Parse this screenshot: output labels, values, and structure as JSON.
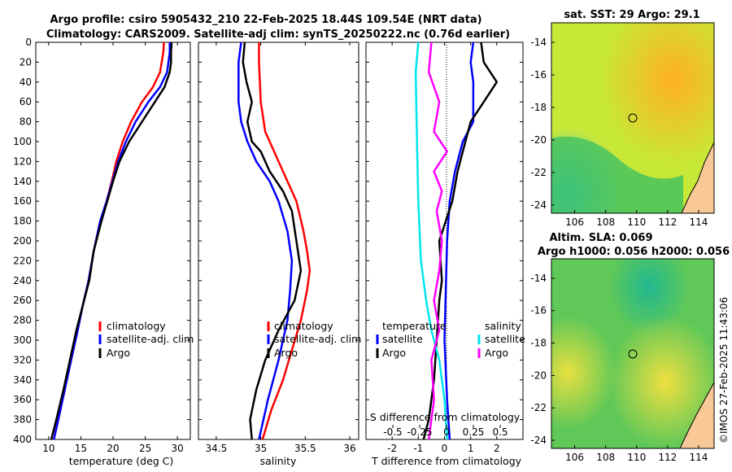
{
  "header": {
    "title_line1": "Argo profile: csiro 5905432_210 22-Feb-2025 18.44S 109.54E (NRT data)",
    "title_line2": "Climatology: CARS2009. Satellite-adj clim: synTS_20250222.nc (0.76d earlier)"
  },
  "colors": {
    "climatology": "#ff0000",
    "satellite": "#0000ff",
    "argo": "#000000",
    "t_diff": "#ff00ff",
    "s_diff": "#00e5ee"
  },
  "chart_data": [
    {
      "type": "line",
      "id": "temperature",
      "xlabel": "temperature (deg C)",
      "ylabel": "",
      "xlim": [
        8,
        32
      ],
      "ylim": [
        400,
        0
      ],
      "xticks": [
        10,
        15,
        20,
        25,
        30
      ],
      "yticks": [
        0,
        20,
        40,
        60,
        80,
        100,
        120,
        140,
        160,
        180,
        200,
        220,
        240,
        260,
        280,
        300,
        320,
        340,
        360,
        380,
        400
      ],
      "legend": [
        "climatology",
        "satellite-adj. clim",
        "Argo"
      ],
      "series": [
        {
          "name": "climatology",
          "color": "#ff0000",
          "points": [
            [
              27.9,
              0
            ],
            [
              27.8,
              10
            ],
            [
              27.3,
              30
            ],
            [
              26.2,
              45
            ],
            [
              24.5,
              60
            ],
            [
              22.8,
              80
            ],
            [
              21.5,
              100
            ],
            [
              20.5,
              120
            ],
            [
              19.8,
              140
            ],
            [
              19.0,
              160
            ],
            [
              18.0,
              180
            ],
            [
              17.0,
              210
            ],
            [
              16.2,
              240
            ],
            [
              15.3,
              265
            ],
            [
              14.5,
              290
            ],
            [
              13.5,
              320
            ],
            [
              12.5,
              350
            ],
            [
              11.5,
              380
            ],
            [
              10.8,
              400
            ]
          ]
        },
        {
          "name": "satellite-adj. clim",
          "color": "#0000ff",
          "points": [
            [
              28.8,
              0
            ],
            [
              28.8,
              10
            ],
            [
              28.4,
              30
            ],
            [
              27.3,
              45
            ],
            [
              25.5,
              60
            ],
            [
              23.5,
              80
            ],
            [
              22.0,
              100
            ],
            [
              20.8,
              120
            ],
            [
              19.9,
              140
            ],
            [
              19.0,
              160
            ],
            [
              18.0,
              180
            ],
            [
              17.0,
              210
            ],
            [
              16.2,
              240
            ],
            [
              15.3,
              265
            ],
            [
              14.5,
              290
            ],
            [
              13.5,
              320
            ],
            [
              12.5,
              350
            ],
            [
              11.5,
              380
            ],
            [
              10.8,
              400
            ]
          ]
        },
        {
          "name": "Argo",
          "color": "#000000",
          "points": [
            [
              29.1,
              0
            ],
            [
              29.0,
              10
            ],
            [
              29.0,
              20
            ],
            [
              28.8,
              30
            ],
            [
              28.0,
              45
            ],
            [
              26.5,
              60
            ],
            [
              24.5,
              80
            ],
            [
              22.5,
              100
            ],
            [
              21.0,
              120
            ],
            [
              20.0,
              140
            ],
            [
              19.1,
              160
            ],
            [
              18.2,
              180
            ],
            [
              17.0,
              210
            ],
            [
              16.3,
              240
            ],
            [
              15.3,
              265
            ],
            [
              14.3,
              290
            ],
            [
              13.3,
              320
            ],
            [
              12.3,
              350
            ],
            [
              11.2,
              380
            ],
            [
              10.4,
              400
            ]
          ]
        }
      ]
    },
    {
      "type": "line",
      "id": "salinity",
      "xlabel": "salinity",
      "ylabel": "",
      "xlim": [
        34.3,
        36.1
      ],
      "ylim": [
        400,
        0
      ],
      "xticks": [
        34.5,
        35,
        35.5,
        36
      ],
      "legend": [
        "climatology",
        "satellite-adj. clim",
        "Argo"
      ],
      "series": [
        {
          "name": "climatology",
          "color": "#ff0000",
          "points": [
            [
              34.98,
              0
            ],
            [
              34.98,
              20
            ],
            [
              35.0,
              60
            ],
            [
              35.05,
              90
            ],
            [
              35.1,
              100
            ],
            [
              35.2,
              120
            ],
            [
              35.3,
              140
            ],
            [
              35.4,
              160
            ],
            [
              35.48,
              190
            ],
            [
              35.52,
              210
            ],
            [
              35.55,
              230
            ],
            [
              35.52,
              250
            ],
            [
              35.45,
              280
            ],
            [
              35.35,
              310
            ],
            [
              35.25,
              340
            ],
            [
              35.12,
              370
            ],
            [
              35.02,
              400
            ]
          ]
        },
        {
          "name": "satellite-adj. clim",
          "color": "#0000ff",
          "points": [
            [
              34.78,
              0
            ],
            [
              34.75,
              20
            ],
            [
              34.75,
              60
            ],
            [
              34.78,
              80
            ],
            [
              34.85,
              100
            ],
            [
              34.95,
              120
            ],
            [
              35.1,
              140
            ],
            [
              35.2,
              160
            ],
            [
              35.3,
              190
            ],
            [
              35.35,
              220
            ],
            [
              35.33,
              250
            ],
            [
              35.3,
              280
            ],
            [
              35.2,
              320
            ],
            [
              35.08,
              360
            ],
            [
              34.98,
              400
            ]
          ]
        },
        {
          "name": "Argo",
          "color": "#000000",
          "points": [
            [
              34.82,
              0
            ],
            [
              34.8,
              20
            ],
            [
              34.84,
              40
            ],
            [
              34.9,
              60
            ],
            [
              34.85,
              80
            ],
            [
              34.9,
              100
            ],
            [
              35.0,
              110
            ],
            [
              35.1,
              130
            ],
            [
              35.25,
              150
            ],
            [
              35.35,
              170
            ],
            [
              35.4,
              200
            ],
            [
              35.45,
              230
            ],
            [
              35.38,
              260
            ],
            [
              35.2,
              290
            ],
            [
              35.05,
              320
            ],
            [
              34.95,
              350
            ],
            [
              34.88,
              380
            ],
            [
              34.9,
              400
            ]
          ]
        }
      ]
    },
    {
      "type": "line",
      "id": "difference",
      "xlabel": "T difference from climatology",
      "top_axis_label": "S difference from climatology",
      "xlim": [
        -3,
        3
      ],
      "ylim": [
        400,
        0
      ],
      "xticks": [
        -2,
        -1,
        0,
        1,
        2
      ],
      "s_tick_labels": [
        "-0.5",
        "-0.25",
        "0",
        "0.25",
        "0.5"
      ],
      "legend": {
        "temperature_header": "temperature",
        "salinity_header": "salinity",
        "satellite": "satellite",
        "argo": "Argo"
      },
      "series": [
        {
          "name": "T satellite",
          "color": "#0000ff",
          "points": [
            [
              1.1,
              0
            ],
            [
              1.0,
              20
            ],
            [
              1.1,
              40
            ],
            [
              1.1,
              80
            ],
            [
              0.7,
              100
            ],
            [
              0.4,
              130
            ],
            [
              0.2,
              160
            ],
            [
              0.1,
              200
            ],
            [
              0,
              300
            ],
            [
              0.1,
              360
            ],
            [
              0.2,
              400
            ]
          ]
        },
        {
          "name": "T Argo",
          "color": "#000000",
          "points": [
            [
              1.4,
              0
            ],
            [
              1.5,
              20
            ],
            [
              2.0,
              40
            ],
            [
              1.5,
              60
            ],
            [
              1.0,
              80
            ],
            [
              0.8,
              100
            ],
            [
              0.5,
              130
            ],
            [
              0.3,
              160
            ],
            [
              -0.2,
              200
            ],
            [
              -0.1,
              240
            ],
            [
              -0.2,
              260
            ],
            [
              -0.3,
              300
            ],
            [
              -0.4,
              340
            ],
            [
              -0.6,
              380
            ],
            [
              -0.8,
              400
            ]
          ]
        },
        {
          "name": "S satellite",
          "color": "#00e5ee",
          "points": [
            [
              -1.0,
              0
            ],
            [
              -1.1,
              30
            ],
            [
              -1.05,
              100
            ],
            [
              -1.0,
              160
            ],
            [
              -0.9,
              220
            ],
            [
              -0.7,
              260
            ],
            [
              -0.5,
              290
            ],
            [
              -0.2,
              320
            ],
            [
              0.0,
              360
            ],
            [
              0.1,
              400
            ]
          ]
        },
        {
          "name": "S Argo",
          "color": "#ff00ff",
          "points": [
            [
              -0.5,
              0
            ],
            [
              -0.6,
              30
            ],
            [
              -0.2,
              60
            ],
            [
              -0.4,
              90
            ],
            [
              0.1,
              110
            ],
            [
              -0.4,
              130
            ],
            [
              -0.1,
              150
            ],
            [
              -0.3,
              170
            ],
            [
              -0.1,
              200
            ],
            [
              -0.2,
              230
            ],
            [
              -0.4,
              260
            ],
            [
              -0.2,
              290
            ],
            [
              -0.5,
              320
            ],
            [
              -0.4,
              360
            ],
            [
              -0.6,
              400
            ]
          ]
        }
      ]
    },
    {
      "type": "heatmap",
      "id": "sst_map",
      "title": "sat. SST: 29 Argo: 29.1",
      "xticks": [
        106,
        108,
        110,
        112,
        114
      ],
      "yticks": [
        -14,
        -16,
        -18,
        -20,
        -22,
        -24
      ],
      "xlim": [
        104.5,
        115
      ],
      "ylim": [
        -24.5,
        -12.8
      ],
      "argo_position": [
        109.54,
        -18.44
      ]
    },
    {
      "type": "heatmap",
      "id": "sla_map",
      "title_line1": "Altim. SLA: 0.069",
      "title_line2": "Argo h1000: 0.056 h2000: 0.056",
      "xticks": [
        106,
        108,
        110,
        112,
        114
      ],
      "yticks": [
        -14,
        -16,
        -18,
        -20,
        -22,
        -24
      ],
      "xlim": [
        104.5,
        115
      ],
      "ylim": [
        -24.5,
        -12.8
      ],
      "argo_position": [
        109.54,
        -18.44
      ]
    }
  ],
  "copyright": "©IMOS 27-Feb-2025 11:43:06"
}
